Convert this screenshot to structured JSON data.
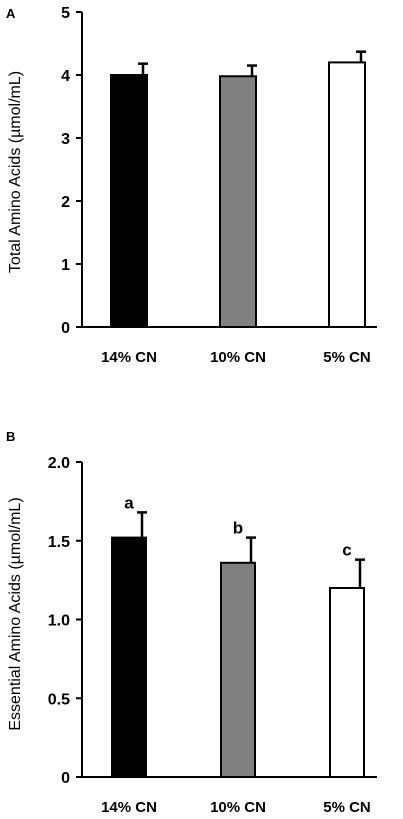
{
  "chart_data": [
    {
      "panel": "A",
      "type": "bar",
      "categories": [
        "14% CN",
        "10% CN",
        "5% CN"
      ],
      "values": [
        4.0,
        3.98,
        4.2
      ],
      "errors": [
        0.18,
        0.17,
        0.17
      ],
      "colors": [
        "#000000",
        "#808080",
        "#ffffff"
      ],
      "ylabel": "Total Amino Acids (µmol/mL)",
      "ylim": [
        0,
        5
      ],
      "yticks": [
        "0",
        "1",
        "2",
        "3",
        "4",
        "5"
      ],
      "yticks_values": [
        0,
        1,
        2,
        3,
        4,
        5
      ],
      "annotations": [
        "",
        "",
        ""
      ],
      "grid": false,
      "legend": "none"
    },
    {
      "panel": "B",
      "type": "bar",
      "categories": [
        "14% CN",
        "10% CN",
        "5% CN"
      ],
      "values": [
        1.52,
        1.36,
        1.2
      ],
      "errors": [
        0.16,
        0.16,
        0.18
      ],
      "colors": [
        "#000000",
        "#808080",
        "#ffffff"
      ],
      "ylabel": "Essential Amino Acids (µmol/mL)",
      "ylim": [
        0,
        2.0
      ],
      "yticks": [
        "0",
        "0.5",
        "1.0",
        "1.5",
        "2.0"
      ],
      "yticks_values": [
        0,
        0.5,
        1.0,
        1.5,
        2.0
      ],
      "annotations": [
        "a",
        "b",
        "c"
      ],
      "grid": false,
      "legend": "none"
    }
  ]
}
